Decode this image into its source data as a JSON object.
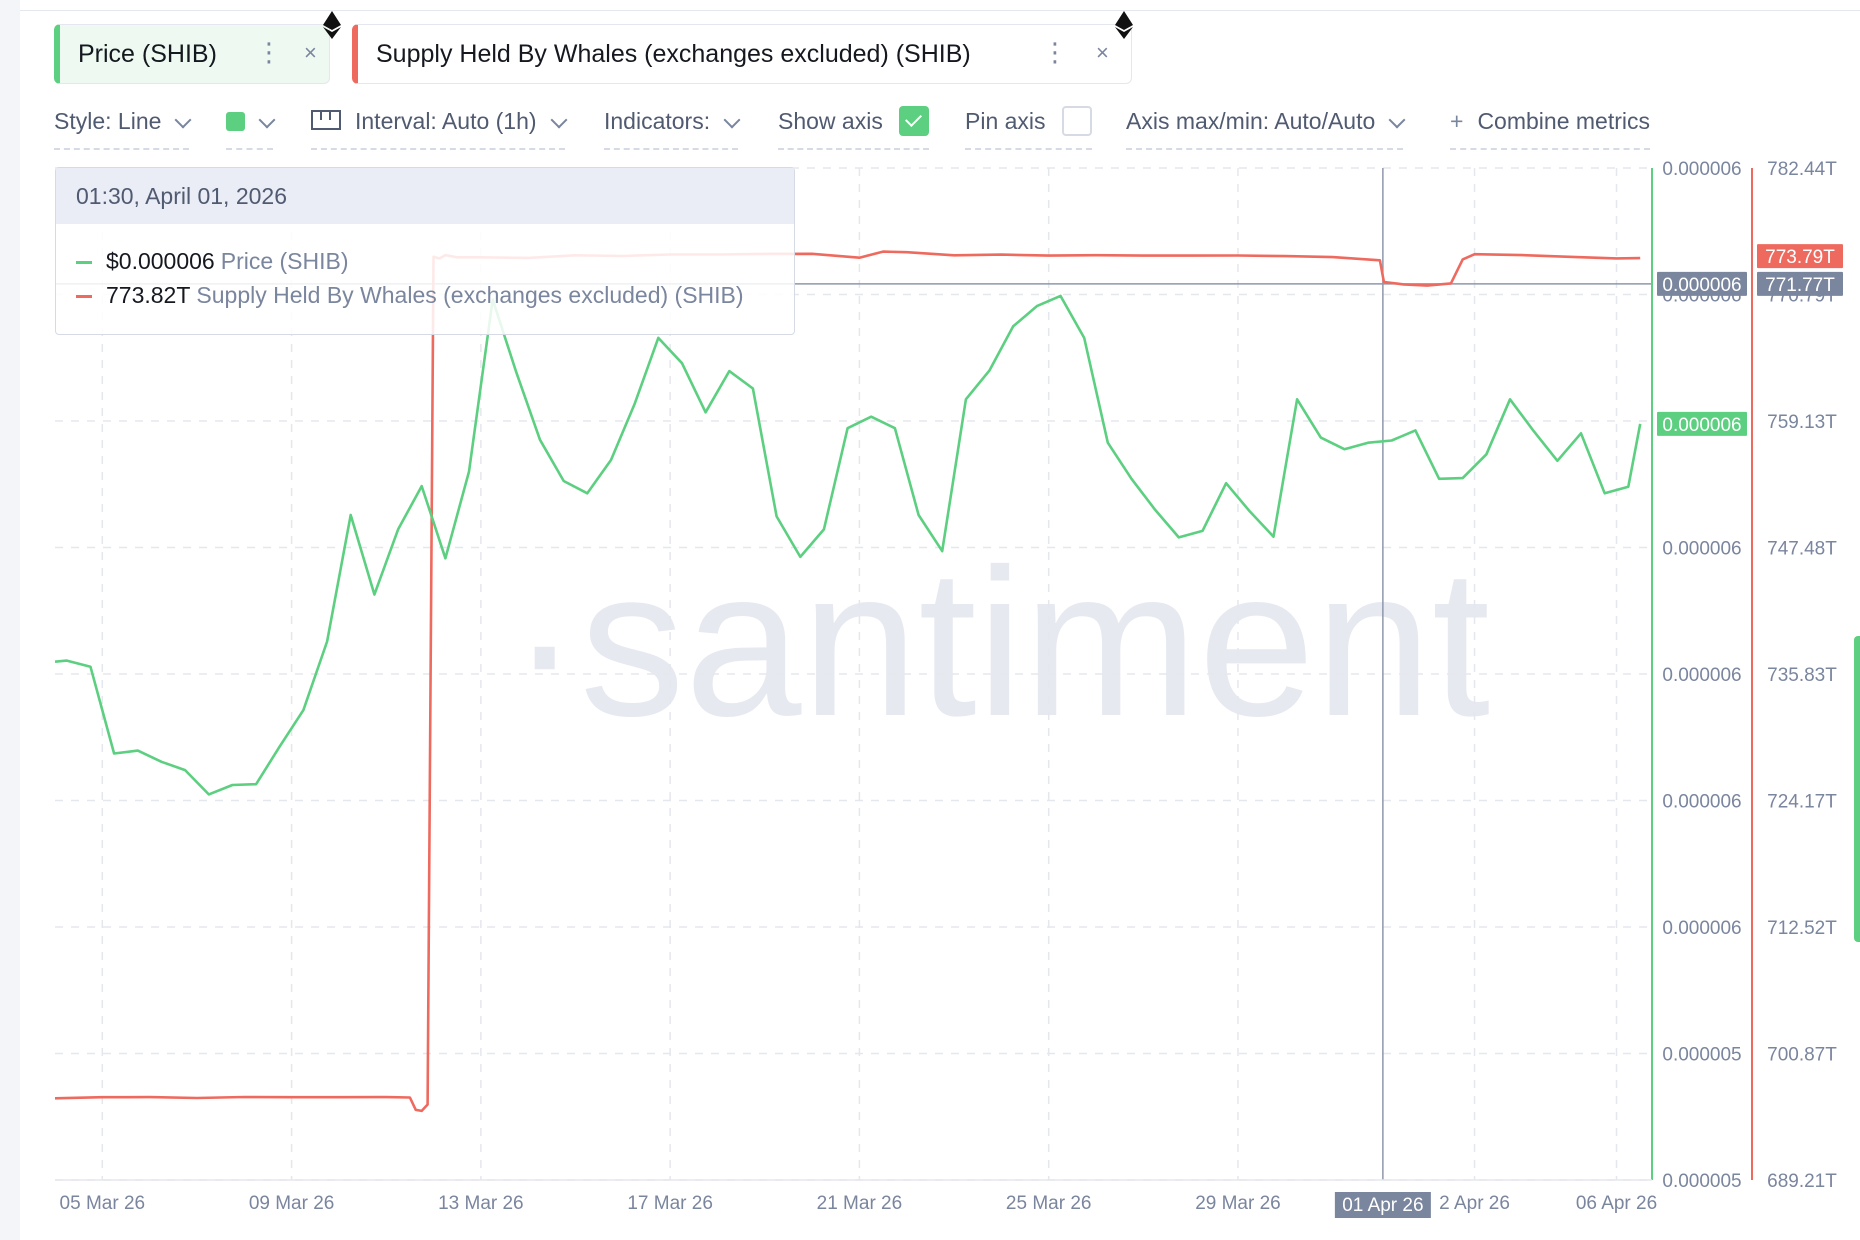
{
  "metrics": [
    {
      "label": "Price (SHIB)",
      "color": "#5ccf80",
      "icon": "ethereum-icon"
    },
    {
      "label": "Supply Held By Whales (exchanges excluded) (SHIB)",
      "color": "#ee6a5f",
      "icon": "ethereum-icon"
    }
  ],
  "toolbar": {
    "style": "Style: Line",
    "interval": "Interval: Auto (1h)",
    "indicators": "Indicators:",
    "show_axis": "Show axis",
    "show_axis_checked": true,
    "pin_axis": "Pin axis",
    "pin_axis_checked": false,
    "axis_maxmin": "Axis max/min: Auto/Auto",
    "combine": "Combine metrics"
  },
  "tooltip": {
    "date": "01:30, April 01, 2026",
    "rows": [
      {
        "value": "$0.000006",
        "name": "Price (SHIB)",
        "color": "#5ccf80"
      },
      {
        "value": "773.82T",
        "name": "Supply Held By Whales (exchanges excluded) (SHIB)",
        "color": "#ee6a5f"
      }
    ]
  },
  "watermark": "·santiment",
  "chart_data": {
    "type": "line",
    "x_start": "2026-03-04T00:00",
    "x_end": "2026-04-06T18:00",
    "x_ticks": [
      "05 Mar 26",
      "09 Mar 26",
      "13 Mar 26",
      "17 Mar 26",
      "21 Mar 26",
      "25 Mar 26",
      "29 Mar 26",
      "01 Apr 26",
      "2 Apr 26",
      "06 Apr 26"
    ],
    "y_price_ticks": [
      "0.000006",
      "0.000006",
      "0.000006",
      "0.000006",
      "0.000006",
      "0.000006",
      "0.000006",
      "0.000005",
      "0.000005"
    ],
    "y_supply_ticks": [
      "782.44T",
      "770.79T",
      "759.13T",
      "747.48T",
      "735.83T",
      "724.17T",
      "712.52T",
      "700.87T",
      "689.21T"
    ],
    "y_supply_range": [
      689.21,
      782.44
    ],
    "crosshair": {
      "x_label": "01 Apr 26",
      "price_label": "0.000006",
      "supply_label": "771.77T"
    },
    "last_values": {
      "price": "0.000006",
      "supply": "773.79T"
    },
    "grid": true,
    "series": [
      {
        "name": "Price (SHIB)",
        "color": "#5ccf80",
        "axis": "left",
        "x": [
          "2026-03-04T00:00",
          "2026-03-04T06:00",
          "2026-03-04T18:00",
          "2026-03-05T06:00",
          "2026-03-05T18:00",
          "2026-03-06T06:00",
          "2026-03-06T18:00",
          "2026-03-07T06:00",
          "2026-03-07T18:00",
          "2026-03-08T06:00",
          "2026-03-08T18:00",
          "2026-03-09T06:00",
          "2026-03-09T18:00",
          "2026-03-10T06:00",
          "2026-03-10T18:00",
          "2026-03-11T06:00",
          "2026-03-11T18:00",
          "2026-03-12T06:00",
          "2026-03-12T18:00",
          "2026-03-13T06:00",
          "2026-03-13T18:00",
          "2026-03-14T06:00",
          "2026-03-14T18:00",
          "2026-03-15T06:00",
          "2026-03-15T18:00",
          "2026-03-16T06:00",
          "2026-03-16T18:00",
          "2026-03-17T06:00",
          "2026-03-17T18:00",
          "2026-03-18T06:00",
          "2026-03-18T18:00",
          "2026-03-19T06:00",
          "2026-03-19T18:00",
          "2026-03-20T06:00",
          "2026-03-20T18:00",
          "2026-03-21T06:00",
          "2026-03-21T18:00",
          "2026-03-22T06:00",
          "2026-03-22T18:00",
          "2026-03-23T06:00",
          "2026-03-23T18:00",
          "2026-03-24T06:00",
          "2026-03-24T18:00",
          "2026-03-25T06:00",
          "2026-03-25T18:00",
          "2026-03-26T06:00",
          "2026-03-26T18:00",
          "2026-03-27T06:00",
          "2026-03-27T18:00",
          "2026-03-28T06:00",
          "2026-03-28T18:00",
          "2026-03-29T06:00",
          "2026-03-29T18:00",
          "2026-03-30T06:00",
          "2026-03-30T18:00",
          "2026-03-31T06:00",
          "2026-03-31T18:00",
          "2026-04-01T06:00",
          "2026-04-01T18:00",
          "2026-04-02T06:00",
          "2026-04-02T18:00",
          "2026-04-03T06:00",
          "2026-04-03T18:00",
          "2026-04-04T06:00",
          "2026-04-04T18:00",
          "2026-04-05T06:00",
          "2026-04-05T18:00",
          "2026-04-06T06:00",
          "2026-04-06T12:00"
        ],
        "values": [
          5.717e-06,
          5.7185e-06,
          5.71e-06,
          5.59e-06,
          5.594e-06,
          5.5785e-06,
          5.567e-06,
          5.5335e-06,
          5.5465e-06,
          5.5475e-06,
          5.6e-06,
          5.65e-06,
          5.745e-06,
          5.92e-06,
          5.81e-06,
          5.9e-06,
          5.96e-06,
          5.86e-06,
          5.98e-06,
          6.218e-06,
          6.117e-06,
          6.024e-06,
          5.967e-06,
          5.95e-06,
          5.996e-06,
          6.074e-06,
          6.165e-06,
          6.13e-06,
          6.062e-06,
          6.119e-06,
          6.095e-06,
          5.918e-06,
          5.862e-06,
          5.9e-06,
          6.04e-06,
          6.056e-06,
          6.04e-06,
          5.92e-06,
          5.87e-06,
          6.08e-06,
          6.12e-06,
          6.181e-06,
          6.209e-06,
          6.223e-06,
          6.165e-06,
          6.02e-06,
          5.97e-06,
          5.927e-06,
          5.889e-06,
          5.898e-06,
          5.964e-06,
          5.925e-06,
          5.89e-06,
          6.08e-06,
          6.027e-06,
          6.011e-06,
          6.02e-06,
          6.023e-06,
          6.037e-06,
          5.97e-06,
          5.971e-06,
          6.004e-06,
          6.08e-06,
          6.036e-06,
          5.995e-06,
          6.033e-06,
          5.95e-06,
          5.959e-06,
          6.046e-06
        ]
      },
      {
        "name": "Supply Held By Whales (exchanges excluded) (SHIB)",
        "color": "#ee6a5f",
        "axis": "right",
        "x": [
          "2026-03-04T00:00",
          "2026-03-05T00:00",
          "2026-03-06T00:00",
          "2026-03-07T00:00",
          "2026-03-08T00:00",
          "2026-03-09T00:00",
          "2026-03-10T00:00",
          "2026-03-11T00:00",
          "2026-03-11T12:00",
          "2026-03-11T15:00",
          "2026-03-11T18:00",
          "2026-03-11T21:00",
          "2026-03-12T00:00",
          "2026-03-12T03:00",
          "2026-03-12T06:00",
          "2026-03-12T12:00",
          "2026-03-13T00:00",
          "2026-03-14T00:00",
          "2026-03-15T00:00",
          "2026-03-16T00:00",
          "2026-03-17T00:00",
          "2026-03-18T00:00",
          "2026-03-19T00:00",
          "2026-03-20T00:00",
          "2026-03-21T00:00",
          "2026-03-21T12:00",
          "2026-03-22T00:00",
          "2026-03-23T00:00",
          "2026-03-24T00:00",
          "2026-03-25T00:00",
          "2026-03-26T00:00",
          "2026-03-27T00:00",
          "2026-03-28T00:00",
          "2026-03-29T00:00",
          "2026-03-30T00:00",
          "2026-03-31T00:00",
          "2026-04-01T00:00",
          "2026-04-01T02:00",
          "2026-04-01T12:00",
          "2026-04-02T00:00",
          "2026-04-02T12:00",
          "2026-04-02T18:00",
          "2026-04-03T00:00",
          "2026-04-04T00:00",
          "2026-04-05T00:00",
          "2026-04-06T00:00",
          "2026-04-06T12:00"
        ],
        "values": [
          696.74,
          696.84,
          696.85,
          696.76,
          696.86,
          696.84,
          696.84,
          696.85,
          696.81,
          695.67,
          695.58,
          696.17,
          774.26,
          774.1,
          774.42,
          774.21,
          774.21,
          774.16,
          774.4,
          774.33,
          774.47,
          774.47,
          774.53,
          774.54,
          774.18,
          774.74,
          774.68,
          774.4,
          774.46,
          774.37,
          774.41,
          774.37,
          774.37,
          774.38,
          774.32,
          774.23,
          773.94,
          771.94,
          771.72,
          771.61,
          771.81,
          774.02,
          774.5,
          774.42,
          774.26,
          774.11,
          774.14
        ]
      }
    ]
  }
}
